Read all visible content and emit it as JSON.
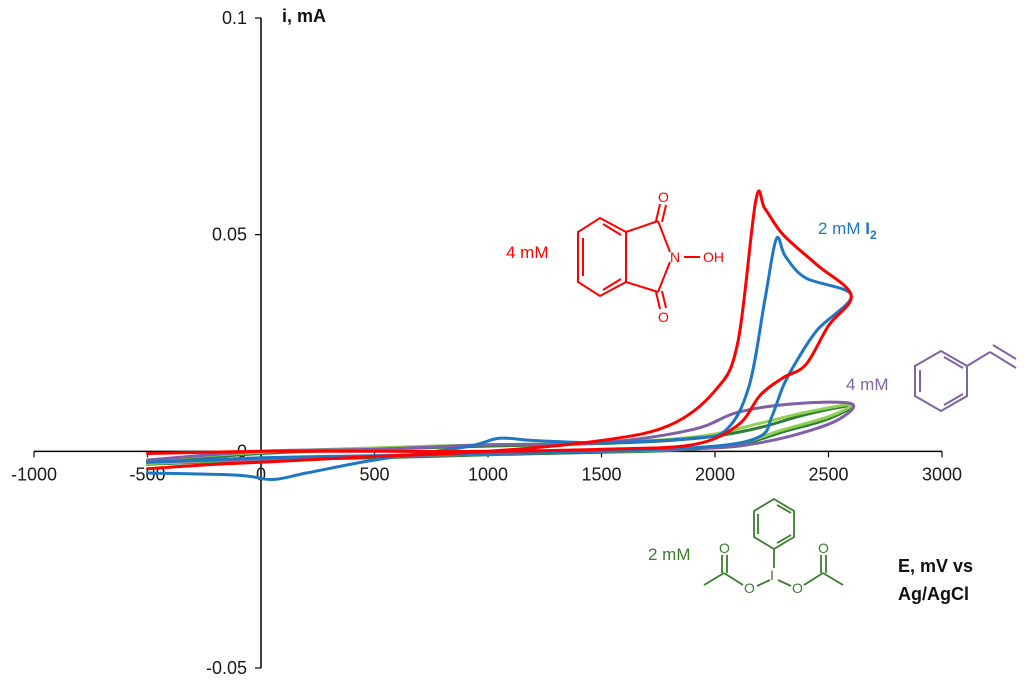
{
  "chart_data": {
    "type": "line",
    "title": "",
    "xlabel": "E, mV vs Ag/AgCl",
    "xlabel_lines": [
      "E, mV vs",
      "Ag/AgCl"
    ],
    "ylabel": "i, mA",
    "xlim": [
      -1000,
      3000
    ],
    "ylim": [
      -0.05,
      0.1
    ],
    "xticks": [
      "-1000",
      "-500",
      "0",
      "500",
      "1000",
      "1500",
      "2000",
      "2500",
      "3000"
    ],
    "yticks": [
      "0.1",
      "0.05",
      "0",
      "-0.05"
    ],
    "grid": false,
    "legend": "none",
    "series": [
      {
        "color": "#2E7D3A",
        "points": [
          [
            -500,
            -0.0025
          ],
          [
            0,
            -0.0005
          ],
          [
            500,
            0.0005
          ],
          [
            1000,
            0.0012
          ],
          [
            1500,
            0.0018
          ],
          [
            1800,
            0.0025
          ],
          [
            2000,
            0.0035
          ],
          [
            2200,
            0.0055
          ],
          [
            2400,
            0.0085
          ],
          [
            2600,
            0.0105
          ],
          [
            2500,
            0.0075
          ],
          [
            2300,
            0.0045
          ],
          [
            2100,
            0.0015
          ],
          [
            1800,
            0.0002
          ],
          [
            1500,
            -0.0002
          ],
          [
            1000,
            -0.0008
          ],
          [
            500,
            -0.0015
          ],
          [
            0,
            -0.002
          ],
          [
            -500,
            -0.003
          ]
        ]
      },
      {
        "color": "#92D050",
        "points": [
          [
            -500,
            -0.002
          ],
          [
            0,
            -0.0002
          ],
          [
            500,
            0.0008
          ],
          [
            1000,
            0.0015
          ],
          [
            1500,
            0.002
          ],
          [
            1800,
            0.0028
          ],
          [
            2000,
            0.004
          ],
          [
            2200,
            0.0065
          ],
          [
            2400,
            0.009
          ],
          [
            2600,
            0.0108
          ],
          [
            2500,
            0.008
          ],
          [
            2300,
            0.005
          ],
          [
            2100,
            0.0018
          ],
          [
            1800,
            0.0004
          ],
          [
            1500,
            0
          ],
          [
            1000,
            -0.0006
          ],
          [
            500,
            -0.0012
          ],
          [
            0,
            -0.0018
          ],
          [
            -500,
            -0.0028
          ]
        ]
      },
      {
        "color": "#7F5FA6",
        "points": [
          [
            -500,
            -0.002
          ],
          [
            0,
            0
          ],
          [
            500,
            0.0005
          ],
          [
            1000,
            0.0015
          ],
          [
            1500,
            0.002
          ],
          [
            1900,
            0.005
          ],
          [
            2100,
            0.009
          ],
          [
            2350,
            0.011
          ],
          [
            2600,
            0.011
          ],
          [
            2550,
            0.0075
          ],
          [
            2400,
            0.0045
          ],
          [
            2200,
            0.002
          ],
          [
            2000,
            0.0008
          ],
          [
            1500,
            0
          ],
          [
            1000,
            -0.0006
          ],
          [
            500,
            -0.0012
          ],
          [
            0,
            -0.0018
          ],
          [
            -500,
            -0.0025
          ]
        ]
      },
      {
        "color": "#1F77C4",
        "points": [
          [
            -500,
            -0.005
          ],
          [
            -100,
            -0.0055
          ],
          [
            50,
            -0.0065
          ],
          [
            200,
            -0.005
          ],
          [
            500,
            -0.002
          ],
          [
            900,
            0.001
          ],
          [
            1050,
            0.003
          ],
          [
            1200,
            0.0025
          ],
          [
            1500,
            0.002
          ],
          [
            1900,
            0.003
          ],
          [
            2050,
            0.005
          ],
          [
            2150,
            0.015
          ],
          [
            2220,
            0.035
          ],
          [
            2270,
            0.049
          ],
          [
            2310,
            0.045
          ],
          [
            2400,
            0.04
          ],
          [
            2600,
            0.036
          ],
          [
            2450,
            0.028
          ],
          [
            2350,
            0.02
          ],
          [
            2300,
            0.015
          ],
          [
            2250,
            0.008
          ],
          [
            2200,
            0.0035
          ],
          [
            2000,
            0.0012
          ],
          [
            1500,
            0
          ],
          [
            1000,
            -0.0005
          ],
          [
            500,
            -0.001
          ],
          [
            0,
            -0.0015
          ],
          [
            -500,
            -0.0025
          ]
        ]
      },
      {
        "color": "#FF0000",
        "points": [
          [
            -500,
            -0.004
          ],
          [
            -200,
            -0.003
          ],
          [
            0,
            -0.0025
          ],
          [
            500,
            -0.0012
          ],
          [
            1000,
            0
          ],
          [
            1500,
            0.0025
          ],
          [
            1800,
            0.006
          ],
          [
            2000,
            0.014
          ],
          [
            2100,
            0.025
          ],
          [
            2180,
            0.058
          ],
          [
            2220,
            0.056
          ],
          [
            2300,
            0.05
          ],
          [
            2450,
            0.043
          ],
          [
            2600,
            0.036
          ],
          [
            2500,
            0.029
          ],
          [
            2400,
            0.02
          ],
          [
            2300,
            0.017
          ],
          [
            2200,
            0.013
          ],
          [
            2100,
            0.006
          ],
          [
            1900,
            0.0015
          ],
          [
            1500,
            0.0005
          ],
          [
            1000,
            0
          ],
          [
            500,
            0
          ],
          [
            0,
            0
          ],
          [
            -500,
            -0.0005
          ]
        ]
      }
    ],
    "annotations": [
      {
        "text": "4 mM",
        "color": "#FF0000",
        "anchor": "red-label"
      },
      {
        "text": "2 mM ",
        "bold_suffix": "I",
        "subscript": "2",
        "color": "#1F77C4",
        "anchor": "blue-label"
      },
      {
        "text": "4 mM",
        "color": "#8064A2",
        "anchor": "purple-label"
      },
      {
        "text": "2 mM",
        "color": "#3A7D2C",
        "anchor": "green-label"
      }
    ],
    "structure_labels": {
      "nhpi": [
        "O",
        "N",
        "OH",
        "O"
      ],
      "pida": [
        "I",
        "O",
        "O",
        "O",
        "O"
      ]
    }
  }
}
